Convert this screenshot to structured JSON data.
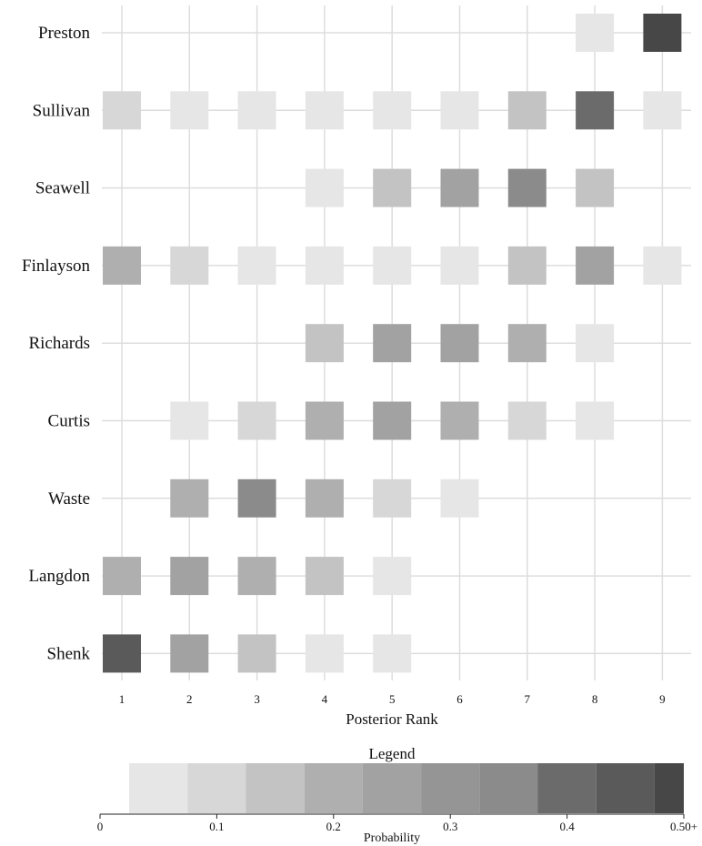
{
  "chart_data": {
    "type": "heatmap",
    "title": "",
    "xlabel": "Posterior Rank",
    "ylabel": "",
    "x_categories": [
      "1",
      "2",
      "3",
      "4",
      "5",
      "6",
      "7",
      "8",
      "9"
    ],
    "y_categories": [
      "Preston",
      "Sullivan",
      "Seawell",
      "Finlayson",
      "Richards",
      "Curtis",
      "Waste",
      "Langdon",
      "Shenk"
    ],
    "cells": [
      {
        "name": "Preston",
        "rank": 8,
        "probability": 0.05
      },
      {
        "name": "Preston",
        "rank": 9,
        "probability": 0.5
      },
      {
        "name": "Sullivan",
        "rank": 1,
        "probability": 0.1
      },
      {
        "name": "Sullivan",
        "rank": 2,
        "probability": 0.05
      },
      {
        "name": "Sullivan",
        "rank": 3,
        "probability": 0.05
      },
      {
        "name": "Sullivan",
        "rank": 4,
        "probability": 0.05
      },
      {
        "name": "Sullivan",
        "rank": 5,
        "probability": 0.05
      },
      {
        "name": "Sullivan",
        "rank": 6,
        "probability": 0.05
      },
      {
        "name": "Sullivan",
        "rank": 7,
        "probability": 0.15
      },
      {
        "name": "Sullivan",
        "rank": 8,
        "probability": 0.4
      },
      {
        "name": "Sullivan",
        "rank": 9,
        "probability": 0.05
      },
      {
        "name": "Seawell",
        "rank": 4,
        "probability": 0.05
      },
      {
        "name": "Seawell",
        "rank": 5,
        "probability": 0.15
      },
      {
        "name": "Seawell",
        "rank": 6,
        "probability": 0.25
      },
      {
        "name": "Seawell",
        "rank": 7,
        "probability": 0.3
      },
      {
        "name": "Seawell",
        "rank": 8,
        "probability": 0.15
      },
      {
        "name": "Finlayson",
        "rank": 1,
        "probability": 0.2
      },
      {
        "name": "Finlayson",
        "rank": 2,
        "probability": 0.1
      },
      {
        "name": "Finlayson",
        "rank": 3,
        "probability": 0.05
      },
      {
        "name": "Finlayson",
        "rank": 4,
        "probability": 0.05
      },
      {
        "name": "Finlayson",
        "rank": 5,
        "probability": 0.05
      },
      {
        "name": "Finlayson",
        "rank": 6,
        "probability": 0.05
      },
      {
        "name": "Finlayson",
        "rank": 7,
        "probability": 0.15
      },
      {
        "name": "Finlayson",
        "rank": 8,
        "probability": 0.25
      },
      {
        "name": "Finlayson",
        "rank": 9,
        "probability": 0.05
      },
      {
        "name": "Richards",
        "rank": 4,
        "probability": 0.15
      },
      {
        "name": "Richards",
        "rank": 5,
        "probability": 0.25
      },
      {
        "name": "Richards",
        "rank": 6,
        "probability": 0.25
      },
      {
        "name": "Richards",
        "rank": 7,
        "probability": 0.2
      },
      {
        "name": "Richards",
        "rank": 8,
        "probability": 0.05
      },
      {
        "name": "Curtis",
        "rank": 2,
        "probability": 0.05
      },
      {
        "name": "Curtis",
        "rank": 3,
        "probability": 0.1
      },
      {
        "name": "Curtis",
        "rank": 4,
        "probability": 0.2
      },
      {
        "name": "Curtis",
        "rank": 5,
        "probability": 0.25
      },
      {
        "name": "Curtis",
        "rank": 6,
        "probability": 0.2
      },
      {
        "name": "Curtis",
        "rank": 7,
        "probability": 0.1
      },
      {
        "name": "Curtis",
        "rank": 8,
        "probability": 0.05
      },
      {
        "name": "Waste",
        "rank": 2,
        "probability": 0.2
      },
      {
        "name": "Waste",
        "rank": 3,
        "probability": 0.3
      },
      {
        "name": "Waste",
        "rank": 4,
        "probability": 0.2
      },
      {
        "name": "Waste",
        "rank": 5,
        "probability": 0.1
      },
      {
        "name": "Waste",
        "rank": 6,
        "probability": 0.05
      },
      {
        "name": "Langdon",
        "rank": 1,
        "probability": 0.2
      },
      {
        "name": "Langdon",
        "rank": 2,
        "probability": 0.25
      },
      {
        "name": "Langdon",
        "rank": 3,
        "probability": 0.2
      },
      {
        "name": "Langdon",
        "rank": 4,
        "probability": 0.15
      },
      {
        "name": "Langdon",
        "rank": 5,
        "probability": 0.05
      },
      {
        "name": "Shenk",
        "rank": 1,
        "probability": 0.45
      },
      {
        "name": "Shenk",
        "rank": 2,
        "probability": 0.25
      },
      {
        "name": "Shenk",
        "rank": 3,
        "probability": 0.15
      },
      {
        "name": "Shenk",
        "rank": 4,
        "probability": 0.05
      },
      {
        "name": "Shenk",
        "rank": 5,
        "probability": 0.05
      }
    ],
    "grid": true,
    "legend": {
      "title": "Legend",
      "axis_title": "Probability",
      "range": [
        0,
        0.5
      ],
      "bins": [
        {
          "value": 0.05,
          "color": "#e6e6e6"
        },
        {
          "value": 0.1,
          "color": "#d7d7d7"
        },
        {
          "value": 0.15,
          "color": "#c3c3c3"
        },
        {
          "value": 0.2,
          "color": "#afafaf"
        },
        {
          "value": 0.25,
          "color": "#a2a2a2"
        },
        {
          "value": 0.3,
          "color": "#8b8b8b"
        },
        {
          "value": 0.4,
          "color": "#6b6b6b"
        },
        {
          "value": 0.45,
          "color": "#5a5a5a"
        },
        {
          "value": 0.5,
          "color": "#474747"
        }
      ],
      "ticks": [
        {
          "value": 0,
          "label": "0"
        },
        {
          "value": 0.1,
          "label": "0.1"
        },
        {
          "value": 0.2,
          "label": "0.2"
        },
        {
          "value": 0.3,
          "label": "0.3"
        },
        {
          "value": 0.4,
          "label": "0.4"
        },
        {
          "value": 0.5,
          "label": "0.50+"
        }
      ]
    }
  }
}
